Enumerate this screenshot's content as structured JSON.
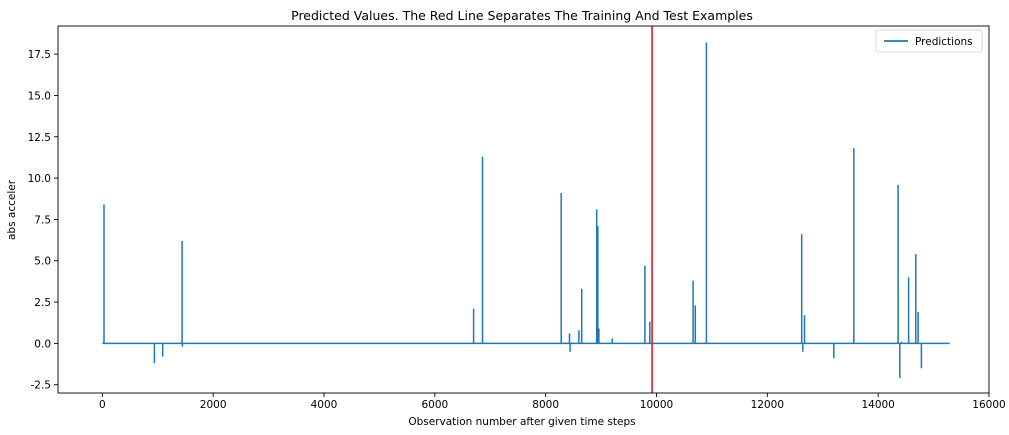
{
  "chart_data": {
    "type": "line",
    "title": "Predicted Values. The Red Line Separates The Training And Test Examples",
    "xlabel": "Observation number after given time steps",
    "ylabel": "abs acceler",
    "xlim": [
      -800,
      16000
    ],
    "ylim": [
      -3.0,
      19.2
    ],
    "xticks": [
      0,
      2000,
      4000,
      6000,
      8000,
      10000,
      12000,
      14000,
      16000
    ],
    "xtick_labels": [
      "0",
      "2000",
      "4000",
      "6000",
      "8000",
      "10000",
      "12000",
      "14000",
      "16000"
    ],
    "yticks": [
      -2.5,
      0.0,
      2.5,
      5.0,
      7.5,
      10.0,
      12.5,
      15.0,
      17.5
    ],
    "ytick_labels": [
      "-2.5",
      "0.0",
      "2.5",
      "5.0",
      "7.5",
      "10.0",
      "12.5",
      "15.0",
      "17.5"
    ],
    "grid": false,
    "legend_position": "top-right",
    "split_line": {
      "x": 9920,
      "color": "#e41a1c"
    },
    "series": [
      {
        "name": "Predictions",
        "color": "#1f77b4",
        "baseline": 0.0,
        "x_start": 0,
        "x_end": 15290,
        "spikes": [
          {
            "x": 30,
            "y": 8.4
          },
          {
            "x": 940,
            "y": -1.2
          },
          {
            "x": 1090,
            "y": -0.8
          },
          {
            "x": 1440,
            "y": 6.2
          },
          {
            "x": 1445,
            "y": -0.2
          },
          {
            "x": 6700,
            "y": 2.1
          },
          {
            "x": 6860,
            "y": 11.3
          },
          {
            "x": 8280,
            "y": 9.1
          },
          {
            "x": 8430,
            "y": 0.6
          },
          {
            "x": 8440,
            "y": -0.5
          },
          {
            "x": 8600,
            "y": 0.8
          },
          {
            "x": 8650,
            "y": 3.3
          },
          {
            "x": 8920,
            "y": 8.1
          },
          {
            "x": 8940,
            "y": 7.1
          },
          {
            "x": 8960,
            "y": 0.9
          },
          {
            "x": 9200,
            "y": 0.3
          },
          {
            "x": 9790,
            "y": 4.7
          },
          {
            "x": 9880,
            "y": 1.3
          },
          {
            "x": 10660,
            "y": 3.8
          },
          {
            "x": 10700,
            "y": 2.3
          },
          {
            "x": 10900,
            "y": 18.2
          },
          {
            "x": 12620,
            "y": 6.6
          },
          {
            "x": 12640,
            "y": -0.5
          },
          {
            "x": 12670,
            "y": 1.7
          },
          {
            "x": 13200,
            "y": -0.9
          },
          {
            "x": 13560,
            "y": 11.8
          },
          {
            "x": 14360,
            "y": 9.6
          },
          {
            "x": 14390,
            "y": -2.1
          },
          {
            "x": 14420,
            "y": 0.1
          },
          {
            "x": 14550,
            "y": 4.0
          },
          {
            "x": 14680,
            "y": 5.4
          },
          {
            "x": 14720,
            "y": 1.9
          },
          {
            "x": 14780,
            "y": -1.5
          }
        ]
      }
    ]
  }
}
